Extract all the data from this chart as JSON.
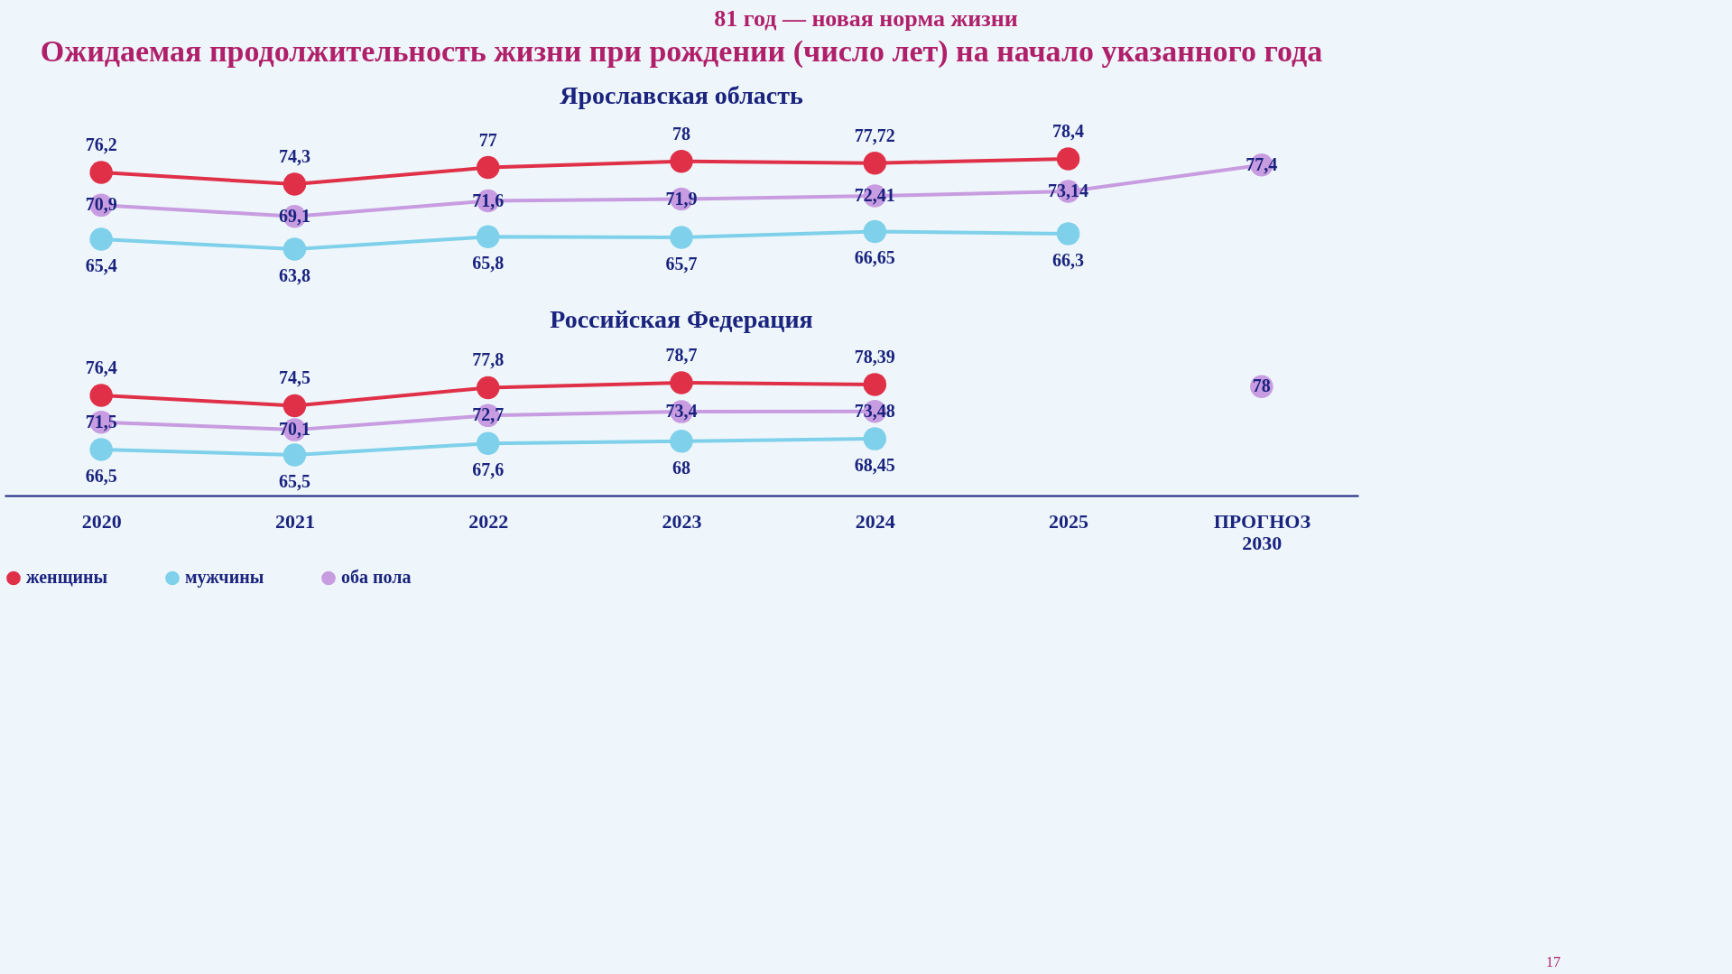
{
  "chart_data": [
    {
      "type": "line",
      "title": "Ожидаемая продолжительность жизни при рождении (число лет) на начало указанного года",
      "subtitle": "Ярославская область",
      "annotations": [
        "81 год — новая норма жизни"
      ],
      "categories": [
        "2020",
        "2021",
        "2022",
        "2023",
        "2024",
        "2025",
        "ПРОГНОЗ 2030"
      ],
      "marker": "circle",
      "grid": false,
      "legend": "bottom",
      "tick_labels": false,
      "series": [
        {
          "name": "женщины",
          "color": "#e03048",
          "values": [
            76.2,
            74.3,
            77,
            78,
            77.72,
            78.4,
            null
          ],
          "value_labels": [
            "76,2",
            "74,3",
            "77",
            "78",
            "77,72",
            "78,4",
            null
          ]
        },
        {
          "name": "мужчины",
          "color": "#7fd0ea",
          "values": [
            65.4,
            63.8,
            65.8,
            65.7,
            66.65,
            66.3,
            null
          ],
          "value_labels": [
            "65,4",
            "63,8",
            "65,8",
            "65,7",
            "66,65",
            "66,3",
            null
          ]
        },
        {
          "name": "оба пола",
          "color": "#c89ce0",
          "values": [
            70.9,
            69.1,
            71.6,
            71.9,
            72.41,
            73.14,
            77.4
          ],
          "value_labels": [
            "70,9",
            "69,1",
            "71,6",
            "71,9",
            "72,41",
            "73,14",
            "77,4"
          ]
        }
      ]
    },
    {
      "type": "line",
      "title": "Российская Федерация",
      "annotations": [
        "17"
      ],
      "categories": [
        "2020",
        "2021",
        "2022",
        "2023",
        "2024",
        "2025",
        "ПРОГНОЗ 2030"
      ],
      "marker": "circle",
      "grid": false,
      "legend": "bottom",
      "tick_labels": "x",
      "series": [
        {
          "name": "женщины",
          "color": "#e03048",
          "values": [
            76.4,
            74.5,
            77.8,
            78.7,
            78.39,
            null,
            null
          ],
          "value_labels": [
            "76,4",
            "74,5",
            "77,8",
            "78,7",
            "78,39",
            null,
            null
          ]
        },
        {
          "name": "мужчины",
          "color": "#7fd0ea",
          "values": [
            66.5,
            65.5,
            67.6,
            68,
            68.45,
            null,
            null
          ],
          "value_labels": [
            "66,5",
            "65,5",
            "67,6",
            "68",
            "68,45",
            null,
            null
          ]
        },
        {
          "name": "оба пола",
          "color": "#c89ce0",
          "values": [
            71.5,
            70.1,
            72.7,
            73.4,
            73.48,
            null,
            78
          ],
          "value_labels": [
            "71,5",
            "70,1",
            "72,7",
            "73,4",
            "73,48",
            null,
            "78"
          ]
        }
      ]
    }
  ]
}
